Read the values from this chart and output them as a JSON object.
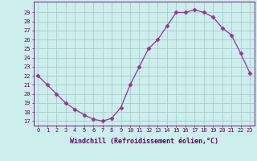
{
  "x": [
    0,
    1,
    2,
    3,
    4,
    5,
    6,
    7,
    8,
    9,
    10,
    11,
    12,
    13,
    14,
    15,
    16,
    17,
    18,
    19,
    20,
    21,
    22,
    23
  ],
  "y": [
    22.0,
    21.0,
    20.0,
    19.0,
    18.3,
    17.7,
    17.2,
    17.0,
    17.3,
    18.5,
    21.0,
    23.0,
    25.0,
    26.0,
    27.5,
    29.0,
    29.0,
    29.3,
    29.0,
    28.5,
    27.3,
    26.5,
    24.5,
    22.3
  ],
  "line_color": "#993399",
  "marker": "D",
  "marker_size": 2.5,
  "bg_color": "#cceeed",
  "grid_color": "#aacccc",
  "xlabel": "Windchill (Refroidissement éolien,°C)",
  "xlabel_color": "#660066",
  "ylabel_ticks": [
    17,
    18,
    19,
    20,
    21,
    22,
    23,
    24,
    25,
    26,
    27,
    28,
    29
  ],
  "xlim": [
    -0.5,
    23.5
  ],
  "ylim": [
    16.5,
    30.2
  ],
  "xtick_labels": [
    "0",
    "1",
    "2",
    "3",
    "4",
    "5",
    "6",
    "7",
    "8",
    "9",
    "10",
    "11",
    "12",
    "13",
    "14",
    "15",
    "16",
    "17",
    "18",
    "19",
    "20",
    "21",
    "22",
    "23"
  ],
  "tick_color": "#660066",
  "axis_color": "#660066",
  "font_family": "monospace",
  "tick_fontsize": 5,
  "xlabel_fontsize": 6
}
